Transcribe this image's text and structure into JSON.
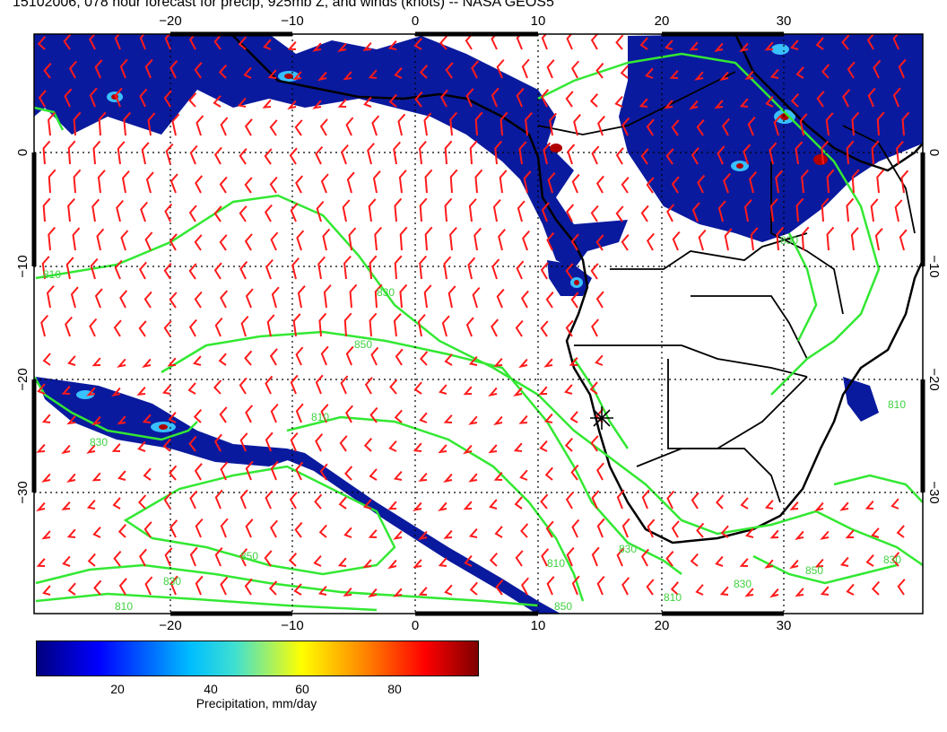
{
  "title": "15102006, 078 hour forecast for precip, 925mb Z, and winds (knots) -- NASA GEOS5",
  "map": {
    "lon_ticks": [
      "−20",
      "−10",
      "0",
      "10",
      "20",
      "30"
    ],
    "lat_ticks": [
      "0",
      "−10",
      "−20",
      "−30"
    ],
    "contour_labels": [
      "810",
      "830",
      "850",
      "810",
      "830",
      "850",
      "830",
      "810",
      "850",
      "830",
      "810",
      "830",
      "850",
      "830",
      "810",
      "830",
      "810"
    ],
    "colors": {
      "precip_low": "#0a1a9e",
      "contour": "#33e833",
      "wind_barb": "#ff1a1a",
      "coastline": "#000000"
    },
    "icons": [
      "wind-barb",
      "station-star"
    ]
  },
  "colorbar": {
    "title": "Precipitation, mm/day",
    "labels": [
      "20",
      "40",
      "60",
      "80"
    ],
    "stops": [
      "#00007f",
      "#0000ff",
      "#00bfff",
      "#40e0d0",
      "#ffff00",
      "#ff7f00",
      "#ff0000",
      "#7f0000"
    ]
  }
}
